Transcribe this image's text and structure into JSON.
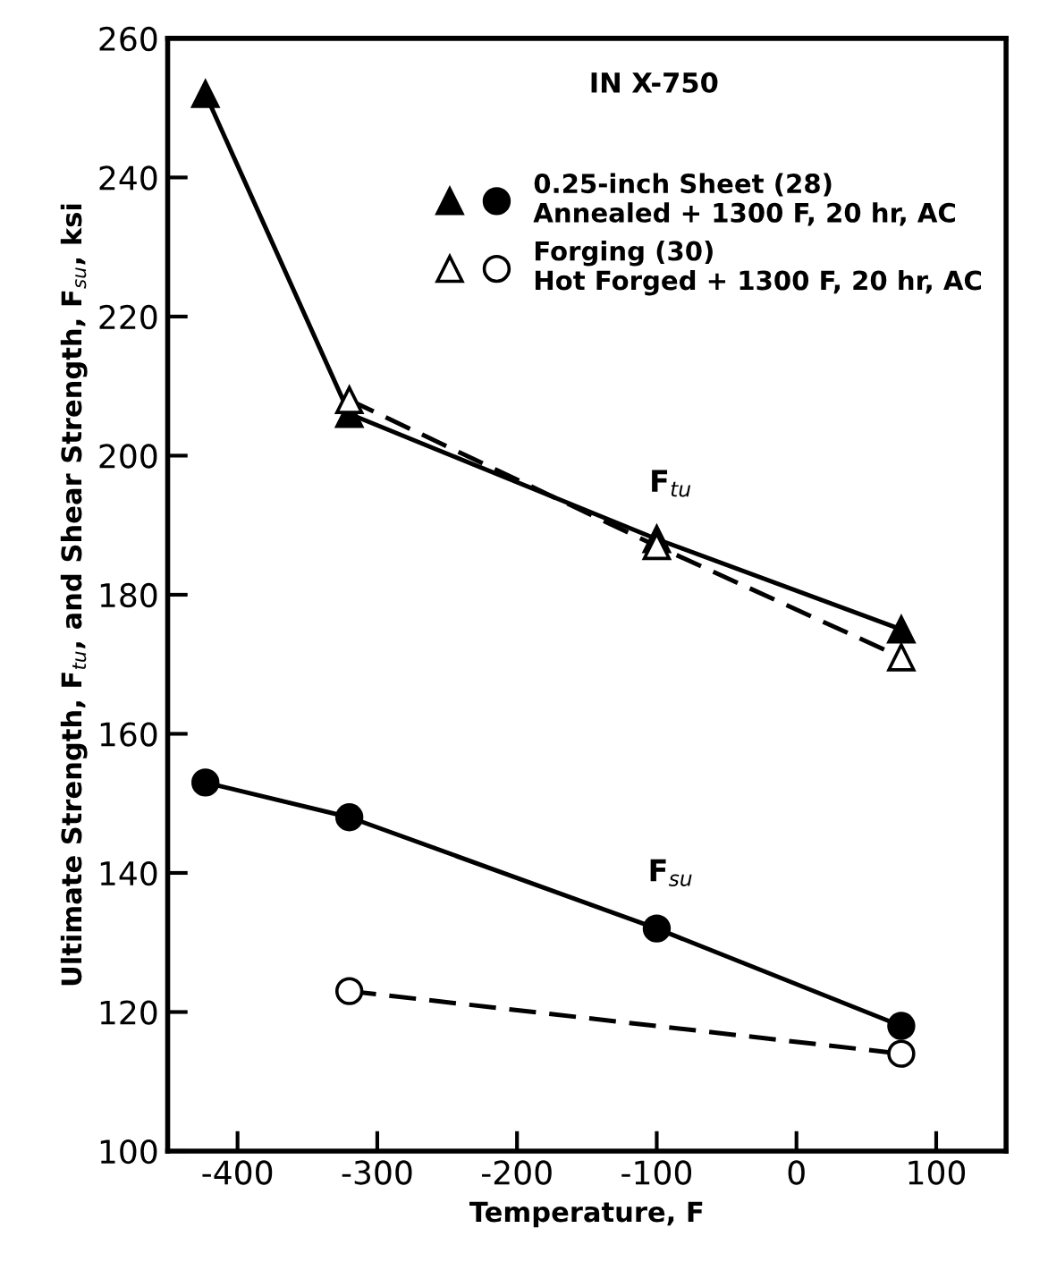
{
  "chart_data": {
    "type": "line",
    "title": "IN X-750",
    "xlabel": "Temperature, F",
    "ylabel": "Ultimate Strength, F$_{tu}$, and Shear Strength, F$_{su}$, ksi",
    "xlim": [
      -450,
      150
    ],
    "xticks": [
      -400,
      -300,
      -200,
      -100,
      0,
      100
    ],
    "ylim": [
      100,
      260
    ],
    "yticks": [
      100,
      120,
      140,
      160,
      180,
      200,
      220,
      240,
      260
    ],
    "grid": false,
    "legend": "top right",
    "series": [
      {
        "name": "0.25-inch Sheet (28)\nAnnealed + 1300 F, 20 hr, AC",
        "color": "#000000",
        "marker": "circle",
        "line_style": "solid",
        "x": [
          -423,
          -320,
          -100,
          75
        ],
        "values": [
          153,
          148,
          132,
          118
        ]
      },
      {
        "color": "#000000",
        "marker": "triangle",
        "line_style": "solid",
        "x": [
          -423,
          -320,
          -100,
          75
        ],
        "values": [
          252,
          206,
          188,
          175
        ]
      },
      {
        "name": "Forging (30)\nHot Forged + 1300 F, 20 hr, AC",
        "color": "#000000",
        "marker": "circle",
        "line_style": "dashed",
        "x": [
          -320,
          75
        ],
        "values": [
          123,
          114
        ]
      },
      {
        "color": "#000000",
        "marker": "triangle",
        "line_style": "dashed",
        "x": [
          -320,
          -100,
          75
        ],
        "values": [
          208,
          187,
          171
        ]
      }
    ],
    "annotations": [
      "F$_{tu}$",
      "F$_{su}$"
    ]
  }
}
